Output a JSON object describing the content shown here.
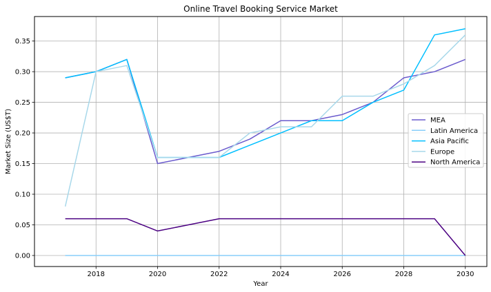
{
  "chart_data": {
    "type": "line",
    "title": "Online Travel Booking Service Market",
    "xlabel": "Year",
    "ylabel": "Market Size (US$T)",
    "x": [
      2017,
      2018,
      2019,
      2020,
      2021,
      2022,
      2023,
      2024,
      2025,
      2026,
      2027,
      2028,
      2029,
      2030
    ],
    "xlim": [
      2016.0,
      2030.7
    ],
    "ylim": [
      -0.018,
      0.39
    ],
    "xticks": [
      2018,
      2020,
      2022,
      2024,
      2026,
      2028,
      2030
    ],
    "yticks": [
      0.0,
      0.05,
      0.1,
      0.15,
      0.2,
      0.25,
      0.3,
      0.35
    ],
    "ytick_labels": [
      "0.00",
      "0.05",
      "0.10",
      "0.15",
      "0.20",
      "0.25",
      "0.30",
      "0.35"
    ],
    "grid": true,
    "legend_position": "center-right",
    "series": [
      {
        "name": "MEA",
        "color": "#6a5acd",
        "values": [
          0.29,
          0.3,
          0.32,
          0.15,
          0.16,
          0.17,
          0.19,
          0.22,
          0.22,
          0.23,
          0.25,
          0.29,
          0.3,
          0.32
        ]
      },
      {
        "name": "Latin America",
        "color": "#87cefa",
        "values": [
          0.0,
          0.0,
          0.0,
          0.0,
          0.0,
          0.0,
          0.0,
          0.0,
          0.0,
          0.0,
          0.0,
          0.0,
          0.0,
          0.0
        ]
      },
      {
        "name": "Asia Pacific",
        "color": "#00bfff",
        "values": [
          0.29,
          0.3,
          0.32,
          0.16,
          0.16,
          0.16,
          0.18,
          0.2,
          0.22,
          0.22,
          0.25,
          0.27,
          0.36,
          0.37
        ]
      },
      {
        "name": "Europe",
        "color": "#a8d8ea",
        "values": [
          0.08,
          0.3,
          0.31,
          0.16,
          0.16,
          0.16,
          0.2,
          0.21,
          0.21,
          0.26,
          0.26,
          0.28,
          0.31,
          0.36
        ]
      },
      {
        "name": "North America",
        "color": "#4b0082",
        "values": [
          0.06,
          0.06,
          0.06,
          0.04,
          0.05,
          0.06,
          0.06,
          0.06,
          0.06,
          0.06,
          0.06,
          0.06,
          0.06,
          0.0
        ]
      }
    ]
  }
}
